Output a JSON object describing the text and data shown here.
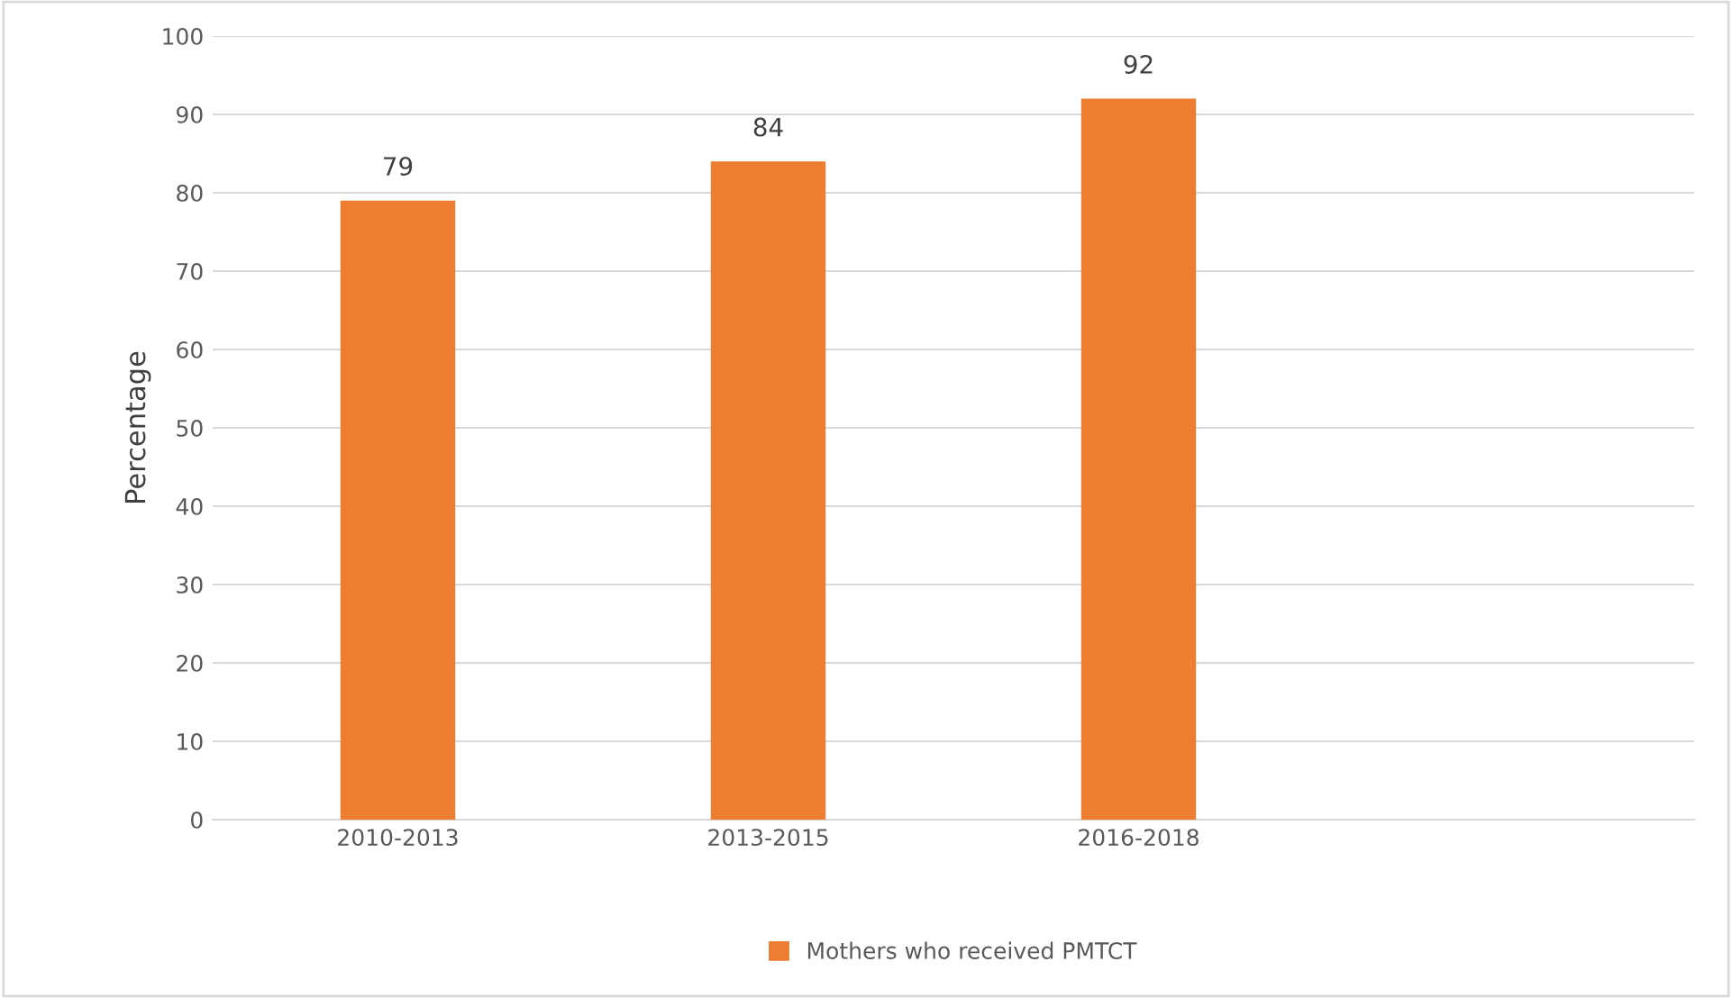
{
  "chart_data": {
    "type": "bar",
    "ylabel": "Percentage",
    "categories": [
      "2010-2013",
      "2013-2015",
      "2016-2018",
      null
    ],
    "series": [
      {
        "name": "Mothers who received PMTCT",
        "color": "#ed7d31",
        "values": [
          79,
          84,
          92,
          null
        ]
      }
    ],
    "ylim": [
      0,
      100
    ],
    "yticks": [
      0,
      10,
      20,
      30,
      40,
      50,
      60,
      70,
      80,
      90,
      100
    ],
    "grid": "y",
    "legend": "bottom",
    "data_labels": true
  }
}
